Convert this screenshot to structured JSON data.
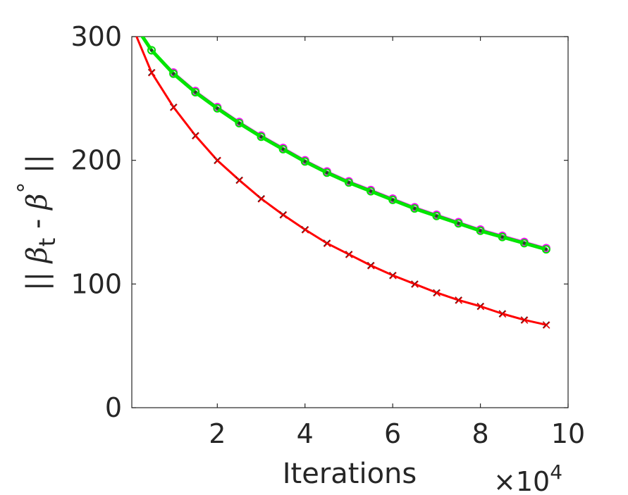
{
  "chart_data": {
    "type": "line",
    "title": "",
    "xlabel": "Iterations",
    "ylabel": "|| β_t - β° ||",
    "ylabel_parts": {
      "bars": "||",
      "beta": "β",
      "sub": "t",
      "minus": "-",
      "sup": "°"
    },
    "x_exponent": {
      "times": "×",
      "base": "10",
      "power": "4"
    },
    "xlim": [
      0.05,
      10
    ],
    "ylim": [
      0,
      300
    ],
    "xticks": [
      2,
      4,
      6,
      8,
      10
    ],
    "xtick_labels": [
      "2",
      "4",
      "6",
      "8",
      "10"
    ],
    "yticks": [
      0,
      100,
      200,
      300
    ],
    "ytick_labels": [
      "0",
      "100",
      "200",
      "300"
    ],
    "grid": false,
    "legend": "none",
    "x": [
      0.5,
      1.0,
      1.5,
      2.0,
      2.5,
      3.0,
      3.5,
      4.0,
      4.5,
      5.0,
      5.5,
      6.0,
      6.5,
      7.0,
      7.5,
      8.0,
      8.5,
      9.0,
      9.5
    ],
    "series": [
      {
        "color": "#ff00ff",
        "marker": "o",
        "curve_start": {
          "x": 0.2,
          "y": 305
        },
        "values": [
          289,
          271,
          256,
          243,
          231,
          220,
          210,
          200,
          191,
          183,
          176,
          169,
          162,
          156,
          150,
          144,
          139,
          134,
          129
        ]
      },
      {
        "color": "#00e600",
        "marker": "o",
        "curve_start": {
          "x": 0.2,
          "y": 305
        },
        "values": [
          289,
          270,
          255,
          242,
          230,
          219,
          209,
          199,
          190,
          182,
          175,
          168,
          161,
          155,
          149,
          143,
          138,
          133,
          128
        ]
      },
      {
        "color": "#ff0000",
        "marker": "x",
        "curve_start": {
          "x": 0.1,
          "y": 305
        },
        "values": [
          271,
          243,
          220,
          200,
          184,
          169,
          156,
          144,
          133,
          124,
          115,
          107,
          100,
          93,
          87,
          82,
          76,
          71,
          67
        ]
      }
    ]
  }
}
